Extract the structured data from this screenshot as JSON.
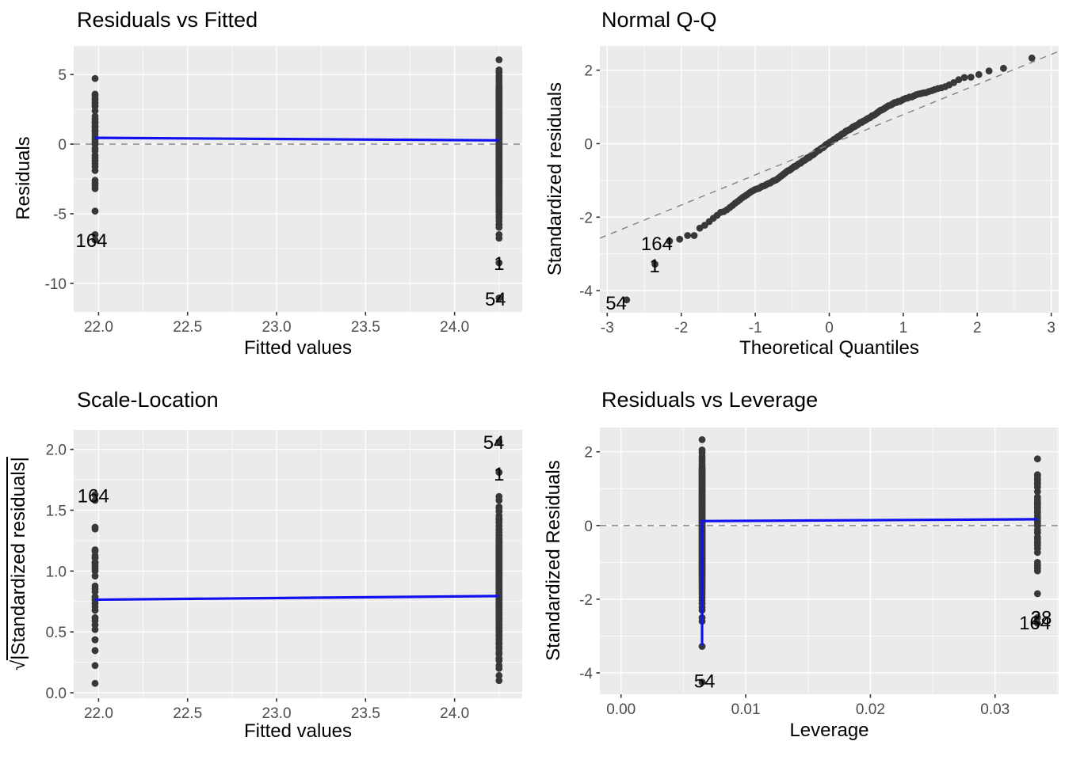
{
  "chart_data": {
    "type": "scatter",
    "description": "2x2 grid of linear-model diagnostic plots",
    "sigma_scale": 2.6,
    "colors": {
      "panel_bg": "#EBEBEB",
      "grid": "#FFFFFF",
      "point": "#383838",
      "smooth_line": "#1010F0",
      "dashed_line": "#828282",
      "tick_mark": "#333333",
      "tick_label": "#4D4D4D",
      "text": "#000000",
      "background": "#FFFFFF"
    },
    "groups": [
      {
        "name": "low-fitted-group",
        "fitted": 21.98,
        "leverage": 0.0334,
        "std_residuals": [
          1.81,
          1.38,
          1.35,
          1.27,
          1.23,
          1.15,
          1.12,
          1.04,
          0.92,
          0.77,
          0.69,
          0.62,
          0.58,
          0.5,
          0.46,
          0.38,
          0.35,
          0.27,
          0.19,
          0.12,
          0.05,
          -0.006,
          -0.12,
          -0.19,
          -0.31,
          -0.38,
          -0.46,
          -0.54,
          -0.62,
          -0.73,
          -1.0,
          -1.08,
          -1.15,
          -1.23,
          -1.85,
          -2.5,
          -2.65
        ]
      },
      {
        "name": "high-fitted-group",
        "fitted": 24.25,
        "leverage": 0.0065,
        "std_residuals": [
          2.33,
          2.05,
          1.98,
          1.88,
          1.8,
          1.74,
          1.66,
          1.6,
          1.55,
          1.52,
          1.5,
          1.47,
          1.44,
          1.42,
          1.39,
          1.36,
          1.33,
          1.3,
          1.27,
          1.24,
          1.21,
          1.18,
          1.15,
          1.12,
          1.09,
          1.06,
          1.03,
          1.0,
          0.97,
          0.94,
          0.91,
          0.88,
          0.85,
          0.82,
          0.79,
          0.76,
          0.73,
          0.7,
          0.67,
          0.64,
          0.61,
          0.58,
          0.55,
          0.52,
          0.49,
          0.46,
          0.43,
          0.4,
          0.37,
          0.34,
          0.31,
          0.28,
          0.25,
          0.22,
          0.19,
          0.16,
          0.13,
          0.1,
          0.07,
          0.04,
          0.01,
          -0.02,
          -0.05,
          -0.08,
          -0.11,
          -0.14,
          -0.17,
          -0.2,
          -0.23,
          -0.26,
          -0.29,
          -0.32,
          -0.35,
          -0.38,
          -0.41,
          -0.44,
          -0.47,
          -0.5,
          -0.53,
          -0.56,
          -0.59,
          -0.62,
          -0.65,
          -0.68,
          -0.71,
          -0.74,
          -0.77,
          -0.8,
          -0.83,
          -0.86,
          -0.89,
          -0.92,
          -0.95,
          -0.98,
          -1.01,
          -1.04,
          -1.07,
          -1.1,
          -1.13,
          -1.16,
          -1.19,
          -1.22,
          -1.25,
          -1.28,
          -1.31,
          -1.35,
          -1.39,
          -1.43,
          -1.47,
          -1.52,
          -1.57,
          -1.62,
          -1.68,
          -1.74,
          -1.8,
          -1.87,
          -1.95,
          -2.03,
          -2.12,
          -2.22,
          -2.3,
          -2.5,
          -2.6,
          -3.28,
          -4.25
        ]
      }
    ],
    "panels": [
      {
        "id": "residuals-vs-fitted",
        "title": "Residuals vs Fitted",
        "xlabel": "Fitted values",
        "ylabel": "Residuals",
        "points_mode": "raw_residuals",
        "xlim": [
          21.86,
          24.38
        ],
        "ylim": [
          -12.05,
          7.05
        ],
        "xticks": {
          "values": [
            22.0,
            22.5,
            23.0,
            23.5,
            24.0
          ],
          "labels": [
            "22.0",
            "22.5",
            "23.0",
            "23.5",
            "24.0"
          ]
        },
        "yticks": {
          "values": [
            -10,
            -5,
            0,
            5
          ],
          "labels": [
            "-10",
            "-5",
            "0",
            "5"
          ]
        },
        "xminor": [
          22.25,
          22.75,
          23.25,
          23.75,
          24.25
        ],
        "yminor": [
          -7.5,
          -2.5,
          2.5
        ],
        "hline": 0,
        "refline": null,
        "smooth": [
          [
            21.98,
            0.45
          ],
          [
            24.25,
            0.27
          ]
        ],
        "point_labels": [
          {
            "text": "164",
            "x": 21.96,
            "y": -6.9
          },
          {
            "text": "1",
            "x": 24.25,
            "y": -8.55
          },
          {
            "text": "54",
            "x": 24.23,
            "y": -11.1
          }
        ]
      },
      {
        "id": "normal-qq",
        "title": "Normal Q-Q",
        "xlabel": "Theoretical Quantiles",
        "ylabel": "Standardized residuals",
        "points_mode": "qq",
        "xlim": [
          -3.1,
          3.1
        ],
        "ylim": [
          -4.6,
          2.66
        ],
        "xticks": {
          "values": [
            -3,
            -2,
            -1,
            0,
            1,
            2,
            3
          ],
          "labels": [
            "-3",
            "-2",
            "-1",
            "0",
            "1",
            "2",
            "3"
          ]
        },
        "yticks": {
          "values": [
            -4,
            -2,
            0,
            2
          ],
          "labels": [
            "-4",
            "-2",
            "0",
            "2"
          ]
        },
        "xminor": [
          -2.5,
          -1.5,
          -0.5,
          0.5,
          1.5,
          2.5
        ],
        "yminor": [
          -3,
          -1,
          1
        ],
        "hline": null,
        "refline": {
          "slope": 0.82,
          "intercept": -0.03
        },
        "smooth": null,
        "point_labels": [
          {
            "text": "164",
            "x": -2.33,
            "y": -2.72
          },
          {
            "text": "1",
            "x": -2.36,
            "y": -3.32
          },
          {
            "text": "54",
            "x": -2.88,
            "y": -4.33
          }
        ]
      },
      {
        "id": "scale-location",
        "title": "Scale-Location",
        "xlabel": "Fitted values",
        "ylabel": "√|Standardized residuals|",
        "ylabel_radical": "√",
        "ylabel_arg": "|Standardized residuals|",
        "points_mode": "sqrt_abs_std",
        "xlim": [
          21.86,
          24.38
        ],
        "ylim": [
          -0.045,
          2.16
        ],
        "xticks": {
          "values": [
            22.0,
            22.5,
            23.0,
            23.5,
            24.0
          ],
          "labels": [
            "22.0",
            "22.5",
            "23.0",
            "23.5",
            "24.0"
          ]
        },
        "yticks": {
          "values": [
            0.0,
            0.5,
            1.0,
            1.5,
            2.0
          ],
          "labels": [
            "0.0",
            "0.5",
            "1.0",
            "1.5",
            "2.0"
          ]
        },
        "xminor": [
          22.25,
          22.75,
          23.25,
          23.75,
          24.25
        ],
        "yminor": [
          0.25,
          0.75,
          1.25,
          1.75
        ],
        "hline": null,
        "refline": null,
        "smooth": [
          [
            21.98,
            0.765
          ],
          [
            24.25,
            0.795
          ]
        ],
        "point_labels": [
          {
            "text": "164",
            "x": 21.97,
            "y": 1.62
          },
          {
            "text": "54",
            "x": 24.22,
            "y": 2.06
          },
          {
            "text": "1",
            "x": 24.25,
            "y": 1.8
          }
        ]
      },
      {
        "id": "residuals-vs-leverage",
        "title": "Residuals vs Leverage",
        "xlabel": "Leverage",
        "ylabel": "Standardized Residuals",
        "points_mode": "leverage",
        "xlim": [
          -0.0017,
          0.0351
        ],
        "ylim": [
          -4.58,
          2.66
        ],
        "xticks": {
          "values": [
            0.0,
            0.01,
            0.02,
            0.03
          ],
          "labels": [
            "0.00",
            "0.01",
            "0.02",
            "0.03"
          ]
        },
        "yticks": {
          "values": [
            -4,
            -2,
            0,
            2
          ],
          "labels": [
            "-4",
            "-2",
            "0",
            "2"
          ]
        },
        "xminor": [
          0.005,
          0.015,
          0.025,
          0.035
        ],
        "yminor": [
          -3,
          -1,
          1
        ],
        "hline": 0,
        "refline": null,
        "smooth": [
          [
            0.0065,
            -3.25
          ],
          [
            0.0065,
            0.12
          ],
          [
            0.0334,
            0.17
          ]
        ],
        "point_labels": [
          {
            "text": "54",
            "x": 0.0067,
            "y": -4.22
          },
          {
            "text": "28",
            "x": 0.0337,
            "y": -2.5
          },
          {
            "text": "164",
            "x": 0.0332,
            "y": -2.64
          }
        ]
      }
    ]
  }
}
